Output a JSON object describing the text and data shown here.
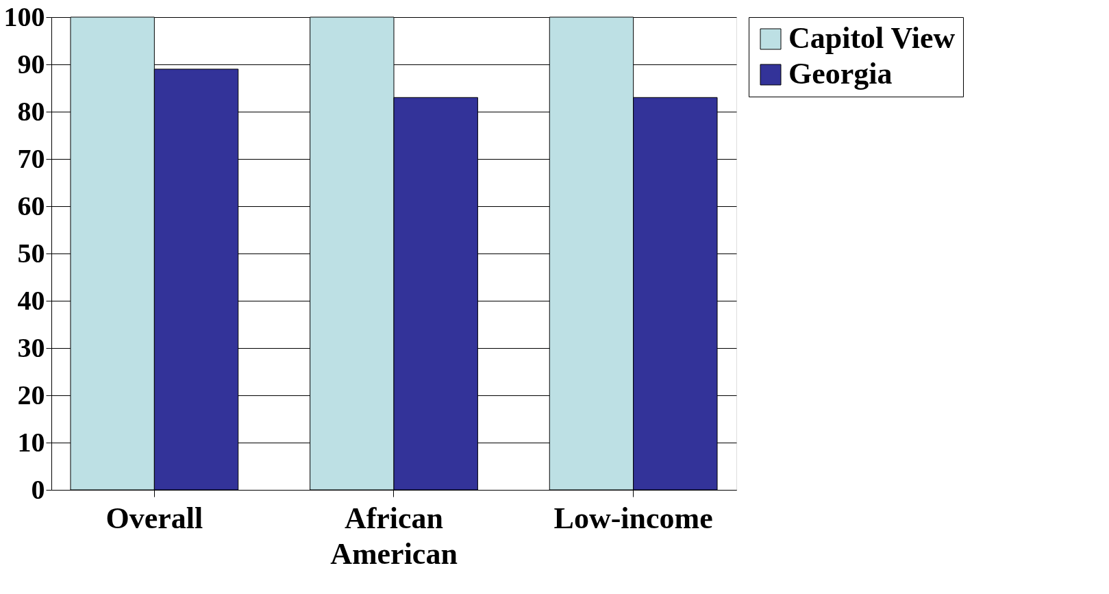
{
  "chart_data": {
    "type": "bar",
    "categories": [
      "Overall",
      "African American",
      "Low-income"
    ],
    "series": [
      {
        "name": "Capitol View",
        "color": "#bde0e4",
        "values": [
          100,
          100,
          100
        ]
      },
      {
        "name": "Georgia",
        "color": "#333399",
        "values": [
          89,
          83,
          83
        ]
      }
    ],
    "ylim": [
      0,
      100
    ],
    "yticks": [
      0,
      10,
      20,
      30,
      40,
      50,
      60,
      70,
      80,
      90,
      100
    ],
    "grid": "y",
    "legend": "right"
  }
}
